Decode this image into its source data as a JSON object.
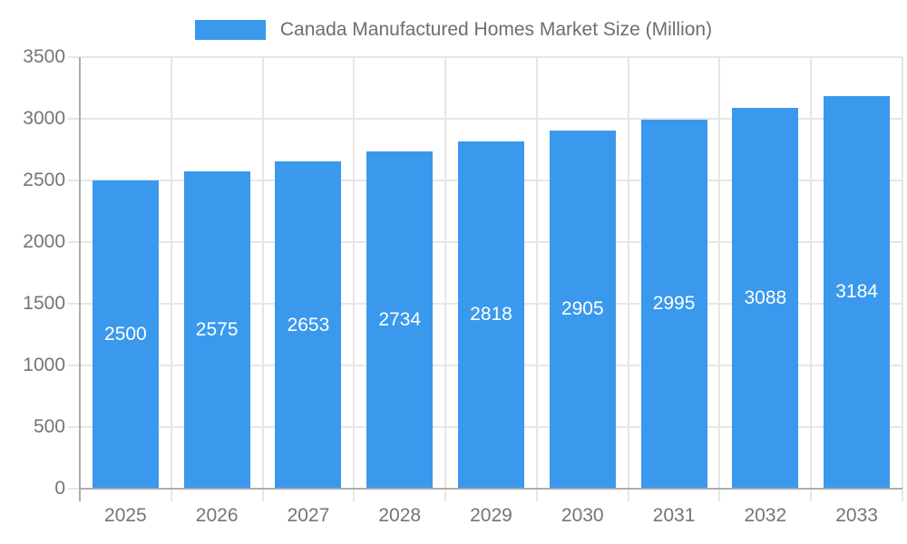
{
  "legend": {
    "label": "Canada Manufactured Homes Market Size (Million)",
    "swatch_color": "#3A99EC"
  },
  "chart_data": {
    "type": "bar",
    "title": "Canada Manufactured Homes Market Size (Million)",
    "categories": [
      "2025",
      "2026",
      "2027",
      "2028",
      "2029",
      "2030",
      "2031",
      "2032",
      "2033"
    ],
    "series": [
      {
        "name": "Canada Manufactured Homes Market Size (Million)",
        "values": [
          2500,
          2575,
          2653,
          2734,
          2818,
          2905,
          2995,
          3088,
          3184
        ]
      }
    ],
    "value_labels": [
      "2500",
      "2575",
      "2653",
      "2734",
      "2818",
      "2905",
      "2995",
      "3088",
      "3184"
    ],
    "xlabel": "",
    "ylabel": "",
    "ylim": [
      0,
      3500
    ],
    "ytick_step": 500,
    "ytick_labels": [
      "0",
      "500",
      "1000",
      "1500",
      "2000",
      "2500",
      "3000",
      "3500"
    ],
    "grid": true,
    "legend_position": "top",
    "colors": {
      "bar": "#3A99EC",
      "bar_label_text": "#FFFFFF",
      "gridline": "#E6E6E6",
      "axis_line": "#ACACAC",
      "tick_label_text": "#757575",
      "legend_text": "#6E6E6E",
      "background": "#FFFFFF"
    }
  }
}
